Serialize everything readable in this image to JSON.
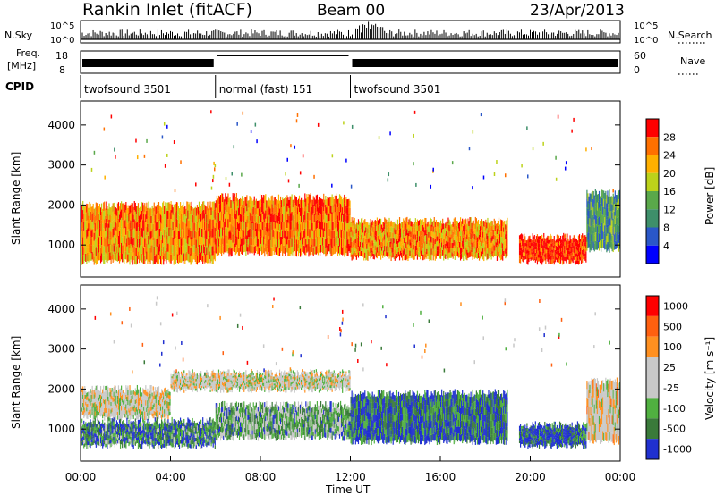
{
  "header": {
    "title": "Rankin Inlet (fitACF)",
    "beam": "Beam 00",
    "date": "23/Apr/2013"
  },
  "panels_small": {
    "nsky_label": "N.Sky",
    "nsearch_label": "N.Search",
    "freq_label_1": "Freq.",
    "freq_label_2": "[MHz]",
    "nave_label": "Nave",
    "cpid_label": "CPID",
    "nsky_ticks": [
      "10^5",
      "10^0"
    ],
    "nsearch_ticks": [
      "10^5",
      "10^0"
    ],
    "freq_ticks": [
      "18",
      "8"
    ],
    "nave_ticks": [
      "60",
      "0"
    ],
    "cpid_segments": [
      {
        "label": "twofsound 3501",
        "start": 0,
        "end": 6
      },
      {
        "label": "normal (fast) 151",
        "start": 6,
        "end": 12
      },
      {
        "label": "twofsound 3501",
        "start": 12,
        "end": 24
      }
    ]
  },
  "chart_data": [
    {
      "type": "heatmap",
      "panel": "power",
      "xlabel": "",
      "ylabel": "Slant Range [km]",
      "x_unit": "hours UT",
      "xlim": [
        0,
        24
      ],
      "ylim": [
        200,
        4600
      ],
      "yticks": [
        "1000",
        "2000",
        "3000",
        "4000"
      ],
      "colorbar_label": "Power [dB]",
      "colorbar_ticks": [
        "4",
        "8",
        "12",
        "16",
        "20",
        "24",
        "28"
      ],
      "colorscale": [
        "#0000ff",
        "#2a57c8",
        "#3e8f6a",
        "#5aa84a",
        "#bcd21a",
        "#ffb000",
        "#ff7000",
        "#ff0000"
      ],
      "echo_bands": [
        {
          "t0": 0,
          "t1": 6,
          "r0": 500,
          "r1": 2100,
          "level": 0.75
        },
        {
          "t0": 6,
          "t1": 12,
          "r0": 700,
          "r1": 2300,
          "level": 0.8
        },
        {
          "t0": 12,
          "t1": 19,
          "r0": 600,
          "r1": 1700,
          "level": 0.75
        },
        {
          "t0": 19.5,
          "t1": 22.5,
          "r0": 500,
          "r1": 1300,
          "level": 0.95
        },
        {
          "t0": 22.5,
          "t1": 24,
          "r0": 800,
          "r1": 2400,
          "level": 0.35
        }
      ]
    },
    {
      "type": "heatmap",
      "panel": "velocity",
      "xlabel": "Time UT",
      "ylabel": "Slant Range [km]",
      "x_unit": "hours UT",
      "xlim": [
        0,
        24
      ],
      "ylim": [
        200,
        4600
      ],
      "xticks": [
        "00:00",
        "04:00",
        "08:00",
        "12:00",
        "16:00",
        "20:00",
        "00:00"
      ],
      "yticks": [
        "1000",
        "2000",
        "3000",
        "4000"
      ],
      "colorbar_label": "Velocity [m s⁻¹]",
      "colorbar_ticks": [
        "1000",
        "500",
        "100",
        "25",
        "-25",
        "-100",
        "-500",
        "-1000"
      ],
      "colorscale": [
        "#2030d0",
        "#3a7a3a",
        "#50b040",
        "#c8c8c8",
        "#c8c8c8",
        "#ff9020",
        "#ff6010",
        "#ff0000"
      ],
      "echo_bands": [
        {
          "t0": 0,
          "t1": 4,
          "r0": 1200,
          "r1": 2100,
          "level": 0.5
        },
        {
          "t0": 0,
          "t1": 6,
          "r0": 500,
          "r1": 1300,
          "level": 0.2
        },
        {
          "t0": 4,
          "t1": 12,
          "r0": 1900,
          "r1": 2500,
          "level": 0.5
        },
        {
          "t0": 6,
          "t1": 12,
          "r0": 700,
          "r1": 1700,
          "level": 0.3
        },
        {
          "t0": 12,
          "t1": 19,
          "r0": 600,
          "r1": 2000,
          "level": 0.15
        },
        {
          "t0": 19.5,
          "t1": 22.5,
          "r0": 500,
          "r1": 1200,
          "level": 0.1
        },
        {
          "t0": 22.5,
          "t1": 24,
          "r0": 600,
          "r1": 2300,
          "level": 0.55
        }
      ]
    }
  ]
}
